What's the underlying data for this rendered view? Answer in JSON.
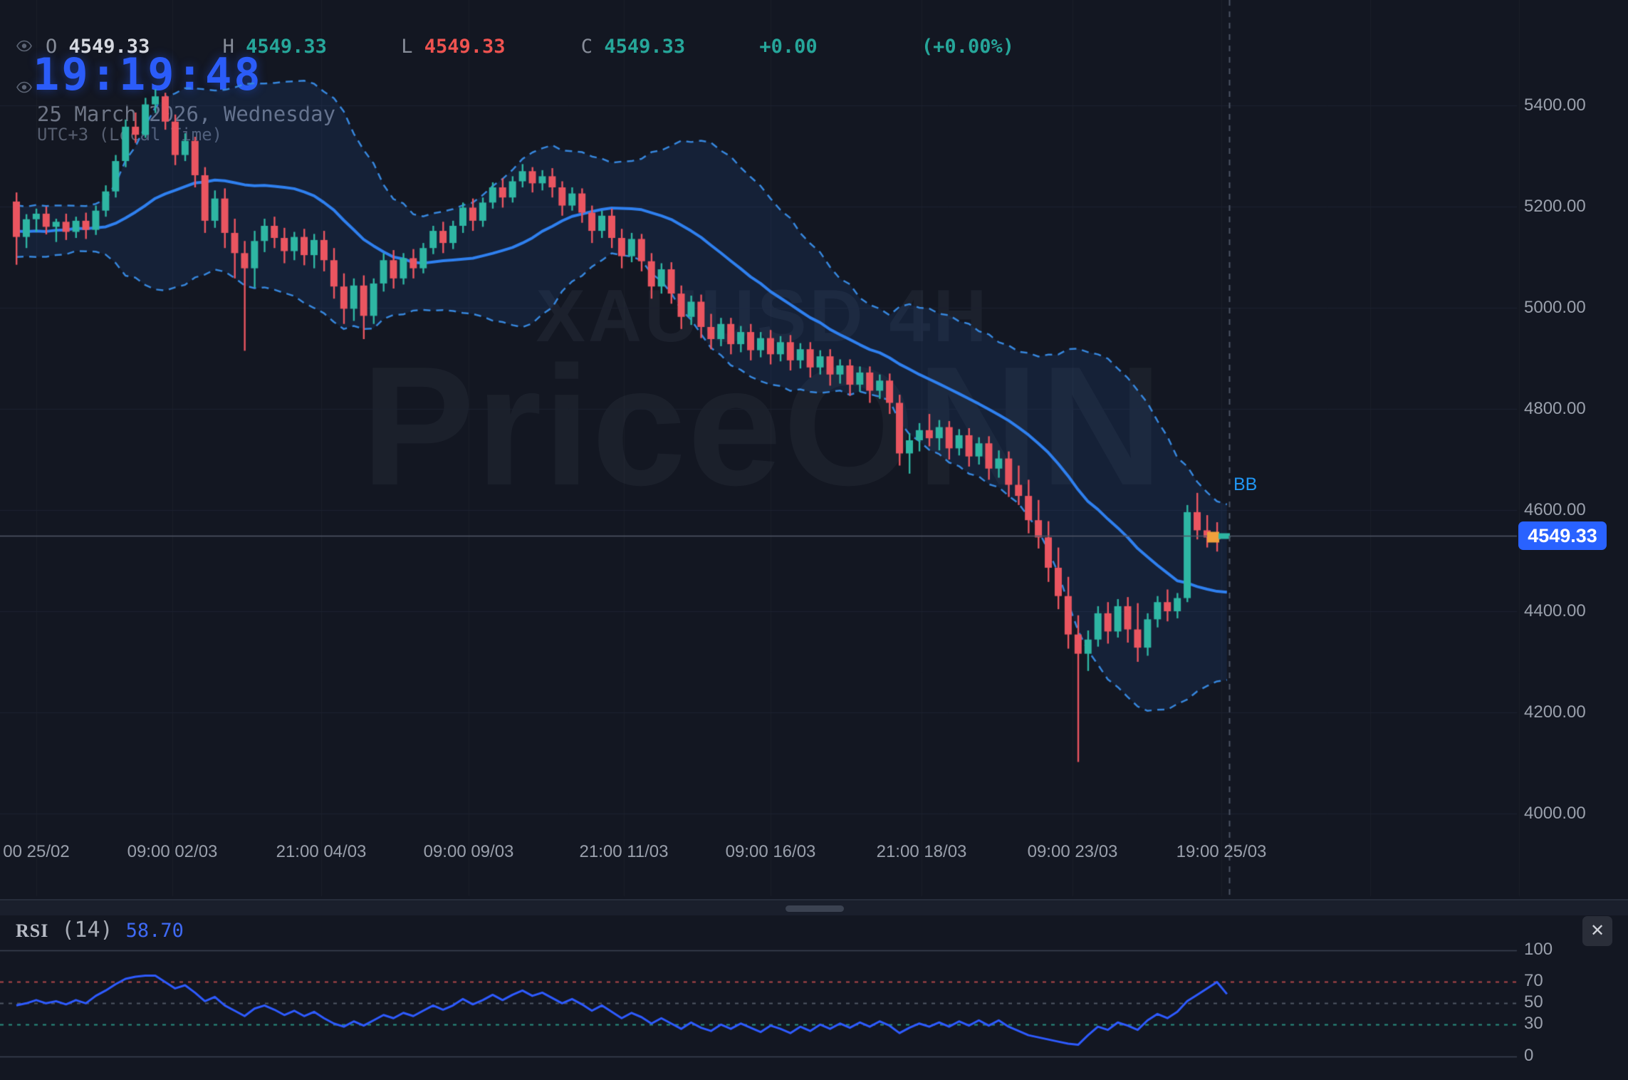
{
  "header": {
    "ohlc": {
      "o_label": "O",
      "o": "4549.33",
      "h_label": "H",
      "h": "4549.33",
      "l_label": "L",
      "l": "4549.33",
      "c_label": "C",
      "c": "4549.33",
      "change": "+0.00",
      "change_pct": "(+0.00%)"
    },
    "clock": "19:19:48",
    "date": "25 March 2026, Wednesday",
    "timezone": "UTC+3 (Local Time)"
  },
  "watermark": {
    "line1": "XAUUSD 4H",
    "line2": "PriceONN"
  },
  "bb_label": "BB",
  "price_badge": "4549.33",
  "rsi_panel": {
    "title": "RSI",
    "period": "(14)",
    "value": "58.70",
    "close_label": "✕"
  },
  "colors": {
    "background": "#131722",
    "accent_blue": "#2962ff",
    "bull": "#2eb6a3",
    "bear": "#ea5560",
    "band_line": "#3787dd",
    "band_mid": "#2f80ef",
    "band_fill": "rgba(41,104,216,0.12)",
    "rsi_line": "#2e5bff",
    "rsi_over": "rgba(214,80,80,0.8)",
    "rsi_mid": "rgba(130,140,155,0.55)",
    "rsi_under": "rgba(48,170,150,0.8)",
    "grid": "#1d2230",
    "price_line": "#515868",
    "marker_orange": "#f0a03c",
    "axis_text": "#9aa0ac"
  },
  "chart_data": {
    "type": "candlestick",
    "symbol": "XAUUSD",
    "timeframe": "4H",
    "current_price": 4549.33,
    "y_ticks": [
      5400,
      5200,
      5000,
      4800,
      4600,
      4400,
      4200,
      4000
    ],
    "y_tick_labels": [
      "5400.00",
      "5200.00",
      "5000.00",
      "4800.00",
      "4600.00",
      "4400.00",
      "4200.00",
      "4000.00"
    ],
    "x_tick_labels": [
      "00 25/02",
      "09:00 02/03",
      "21:00 04/03",
      "09:00 09/03",
      "21:00 11/03",
      "09:00 16/03",
      "21:00 18/03",
      "09:00 23/03",
      "19:00 25/03"
    ],
    "ylim": [
      3960,
      5470
    ],
    "candles": [
      [
        5210,
        5228,
        5085,
        5140
      ],
      [
        5140,
        5185,
        5118,
        5175
      ],
      [
        5175,
        5196,
        5150,
        5186
      ],
      [
        5186,
        5200,
        5145,
        5160
      ],
      [
        5160,
        5176,
        5130,
        5170
      ],
      [
        5170,
        5186,
        5134,
        5150
      ],
      [
        5150,
        5180,
        5138,
        5172
      ],
      [
        5172,
        5188,
        5136,
        5154
      ],
      [
        5154,
        5202,
        5144,
        5192
      ],
      [
        5192,
        5242,
        5180,
        5230
      ],
      [
        5230,
        5302,
        5218,
        5290
      ],
      [
        5290,
        5372,
        5278,
        5358
      ],
      [
        5358,
        5386,
        5326,
        5342
      ],
      [
        5342,
        5415,
        5336,
        5402
      ],
      [
        5402,
        5432,
        5385,
        5418
      ],
      [
        5418,
        5425,
        5352,
        5368
      ],
      [
        5368,
        5382,
        5282,
        5302
      ],
      [
        5302,
        5345,
        5290,
        5330
      ],
      [
        5330,
        5338,
        5238,
        5262
      ],
      [
        5262,
        5278,
        5148,
        5172
      ],
      [
        5172,
        5232,
        5158,
        5216
      ],
      [
        5216,
        5236,
        5118,
        5148
      ],
      [
        5148,
        5176,
        5058,
        5108
      ],
      [
        5108,
        5132,
        4915,
        5078
      ],
      [
        5078,
        5152,
        5040,
        5132
      ],
      [
        5132,
        5176,
        5110,
        5162
      ],
      [
        5162,
        5180,
        5118,
        5138
      ],
      [
        5138,
        5158,
        5088,
        5112
      ],
      [
        5112,
        5150,
        5094,
        5140
      ],
      [
        5140,
        5156,
        5084,
        5104
      ],
      [
        5104,
        5146,
        5078,
        5134
      ],
      [
        5134,
        5152,
        5072,
        5094
      ],
      [
        5094,
        5118,
        5018,
        5042
      ],
      [
        5042,
        5068,
        4968,
        4998
      ],
      [
        4998,
        5058,
        4974,
        5044
      ],
      [
        5044,
        5064,
        4938,
        4984
      ],
      [
        4984,
        5058,
        4968,
        5048
      ],
      [
        5048,
        5108,
        5032,
        5094
      ],
      [
        5094,
        5114,
        5038,
        5058
      ],
      [
        5058,
        5108,
        5046,
        5098
      ],
      [
        5098,
        5116,
        5058,
        5078
      ],
      [
        5078,
        5128,
        5068,
        5118
      ],
      [
        5118,
        5162,
        5106,
        5152
      ],
      [
        5152,
        5170,
        5108,
        5128
      ],
      [
        5128,
        5172,
        5116,
        5162
      ],
      [
        5162,
        5208,
        5148,
        5198
      ],
      [
        5198,
        5216,
        5152,
        5172
      ],
      [
        5172,
        5218,
        5160,
        5208
      ],
      [
        5208,
        5248,
        5196,
        5238
      ],
      [
        5238,
        5256,
        5198,
        5218
      ],
      [
        5218,
        5260,
        5208,
        5250
      ],
      [
        5250,
        5284,
        5238,
        5270
      ],
      [
        5270,
        5278,
        5228,
        5246
      ],
      [
        5246,
        5272,
        5232,
        5260
      ],
      [
        5260,
        5276,
        5218,
        5238
      ],
      [
        5238,
        5250,
        5182,
        5202
      ],
      [
        5202,
        5238,
        5192,
        5226
      ],
      [
        5226,
        5236,
        5168,
        5188
      ],
      [
        5188,
        5202,
        5128,
        5152
      ],
      [
        5152,
        5192,
        5138,
        5182
      ],
      [
        5182,
        5196,
        5118,
        5138
      ],
      [
        5138,
        5156,
        5078,
        5102
      ],
      [
        5102,
        5148,
        5090,
        5136
      ],
      [
        5136,
        5146,
        5072,
        5092
      ],
      [
        5092,
        5108,
        5018,
        5042
      ],
      [
        5042,
        5088,
        5028,
        5076
      ],
      [
        5076,
        5090,
        5008,
        5028
      ],
      [
        5028,
        5044,
        4958,
        4982
      ],
      [
        4982,
        5024,
        4966,
        5012
      ],
      [
        5012,
        5026,
        4940,
        4962
      ],
      [
        4962,
        4988,
        4918,
        4938
      ],
      [
        4938,
        4980,
        4924,
        4968
      ],
      [
        4968,
        4980,
        4908,
        4928
      ],
      [
        4928,
        4964,
        4912,
        4952
      ],
      [
        4952,
        4968,
        4896,
        4916
      ],
      [
        4916,
        4952,
        4902,
        4940
      ],
      [
        4940,
        4956,
        4888,
        4908
      ],
      [
        4908,
        4944,
        4894,
        4932
      ],
      [
        4932,
        4946,
        4876,
        4896
      ],
      [
        4896,
        4930,
        4880,
        4918
      ],
      [
        4918,
        4932,
        4862,
        4882
      ],
      [
        4882,
        4916,
        4868,
        4904
      ],
      [
        4904,
        4918,
        4846,
        4868
      ],
      [
        4868,
        4898,
        4850,
        4886
      ],
      [
        4886,
        4898,
        4826,
        4848
      ],
      [
        4848,
        4884,
        4834,
        4872
      ],
      [
        4872,
        4884,
        4812,
        4836
      ],
      [
        4836,
        4868,
        4820,
        4856
      ],
      [
        4856,
        4870,
        4790,
        4812
      ],
      [
        4812,
        4828,
        4688,
        4712
      ],
      [
        4712,
        4752,
        4672,
        4738
      ],
      [
        4738,
        4772,
        4716,
        4758
      ],
      [
        4758,
        4790,
        4726,
        4742
      ],
      [
        4742,
        4778,
        4718,
        4764
      ],
      [
        4764,
        4776,
        4700,
        4722
      ],
      [
        4722,
        4760,
        4708,
        4748
      ],
      [
        4748,
        4762,
        4686,
        4706
      ],
      [
        4706,
        4744,
        4690,
        4732
      ],
      [
        4732,
        4746,
        4660,
        4682
      ],
      [
        4682,
        4718,
        4664,
        4702
      ],
      [
        4702,
        4716,
        4626,
        4650
      ],
      [
        4650,
        4688,
        4610,
        4628
      ],
      [
        4628,
        4660,
        4554,
        4580
      ],
      [
        4580,
        4620,
        4524,
        4546
      ],
      [
        4546,
        4578,
        4458,
        4486
      ],
      [
        4486,
        4526,
        4404,
        4430
      ],
      [
        4430,
        4468,
        4326,
        4354
      ],
      [
        4354,
        4392,
        4102,
        4316
      ],
      [
        4316,
        4362,
        4282,
        4344
      ],
      [
        4344,
        4410,
        4330,
        4396
      ],
      [
        4396,
        4418,
        4336,
        4360
      ],
      [
        4360,
        4424,
        4348,
        4410
      ],
      [
        4410,
        4428,
        4338,
        4364
      ],
      [
        4364,
        4416,
        4300,
        4328
      ],
      [
        4328,
        4396,
        4312,
        4384
      ],
      [
        4384,
        4430,
        4368,
        4418
      ],
      [
        4418,
        4443,
        4380,
        4400
      ],
      [
        4400,
        4436,
        4386,
        4426
      ],
      [
        4426,
        4610,
        4418,
        4596
      ],
      [
        4596,
        4634,
        4542,
        4560
      ],
      [
        4560,
        4590,
        4526,
        4546
      ],
      [
        4546,
        4576,
        4518,
        4542
      ],
      [
        4549.33,
        4549.33,
        4549.33,
        4549.33
      ]
    ],
    "bollinger": {
      "period": 20,
      "stdev": 2,
      "label": "BB"
    },
    "rsi": {
      "period": 14,
      "current": 58.7,
      "levels": [
        100,
        70,
        50,
        30,
        0
      ],
      "level_labels": [
        "100",
        "70",
        "50",
        "30",
        "0"
      ],
      "values": [
        48,
        50,
        53,
        50,
        52,
        49,
        53,
        50,
        57,
        62,
        68,
        73,
        75,
        76,
        76,
        70,
        64,
        67,
        60,
        52,
        56,
        48,
        43,
        38,
        45,
        48,
        44,
        39,
        43,
        38,
        42,
        36,
        31,
        28,
        33,
        29,
        34,
        39,
        36,
        41,
        38,
        43,
        48,
        44,
        48,
        54,
        49,
        53,
        58,
        53,
        58,
        62,
        57,
        60,
        55,
        50,
        54,
        49,
        43,
        48,
        42,
        36,
        41,
        37,
        31,
        36,
        31,
        26,
        32,
        27,
        24,
        30,
        26,
        31,
        27,
        23,
        29,
        26,
        22,
        28,
        24,
        30,
        26,
        31,
        27,
        32,
        28,
        33,
        29,
        22,
        27,
        31,
        28,
        32,
        28,
        33,
        29,
        34,
        29,
        34,
        28,
        24,
        20,
        18,
        16,
        14,
        12,
        11,
        20,
        28,
        25,
        32,
        29,
        25,
        34,
        40,
        36,
        42,
        52,
        58,
        64,
        70,
        58.7
      ]
    }
  }
}
